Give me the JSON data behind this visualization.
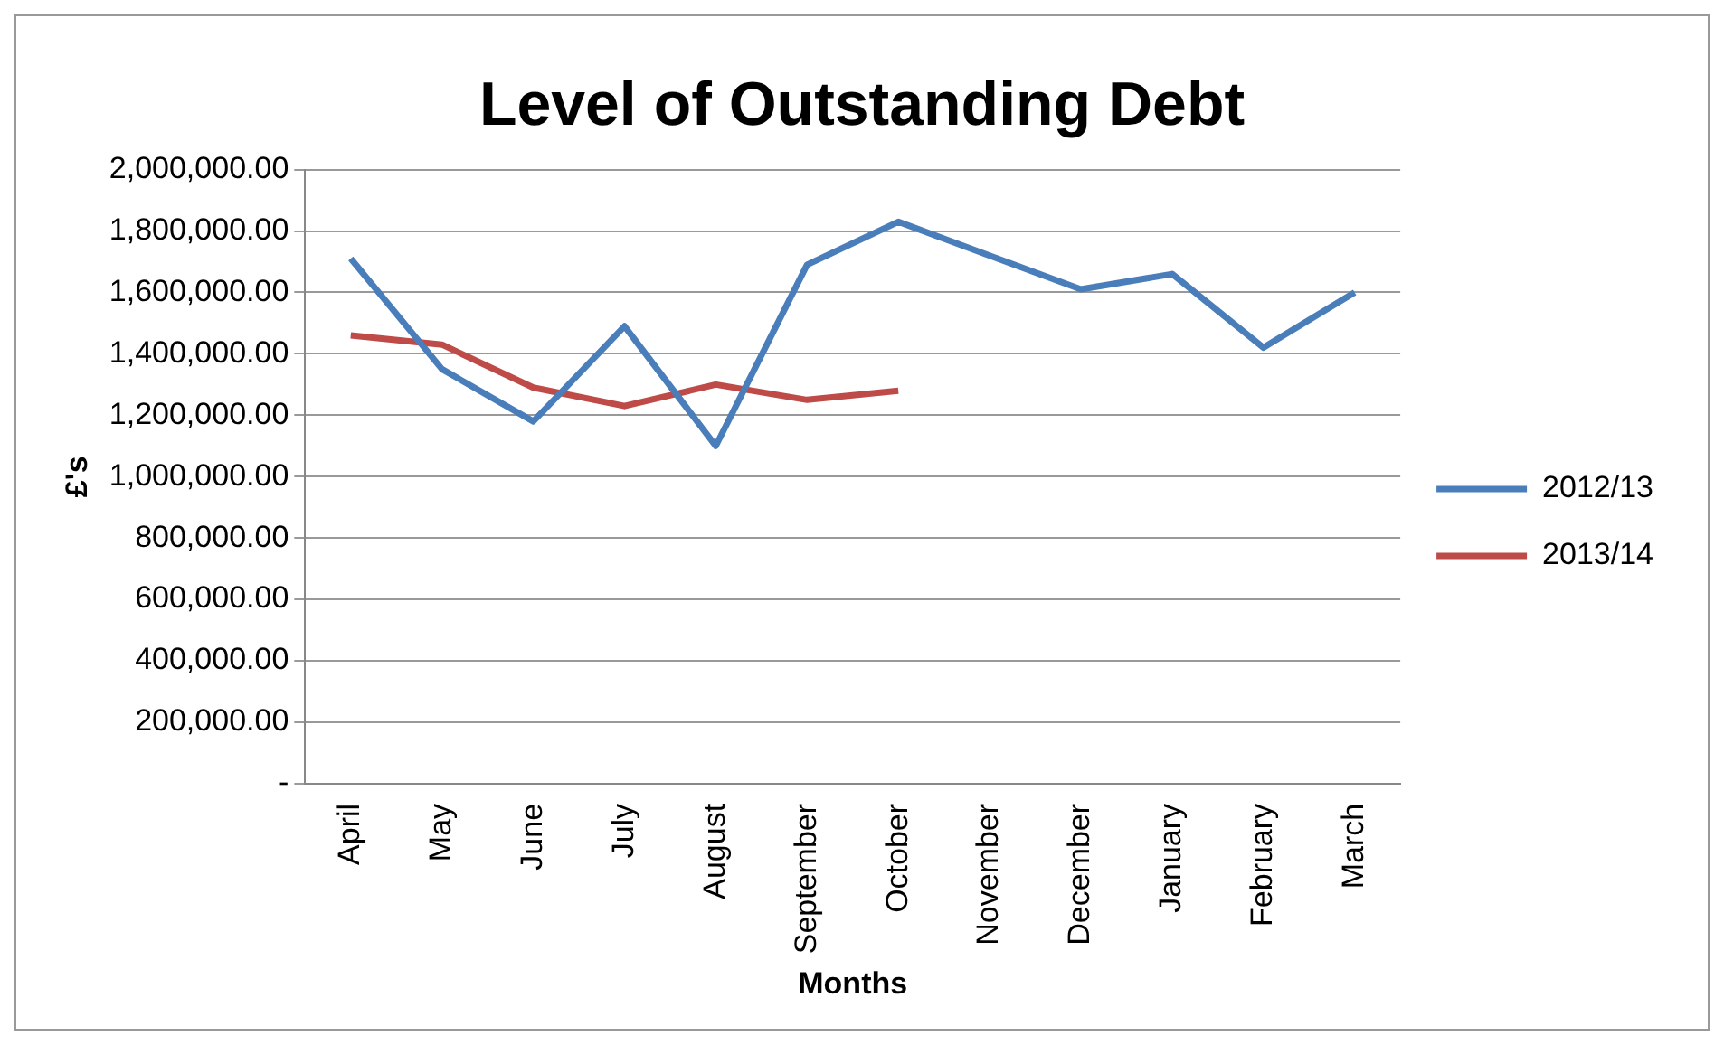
{
  "chart_data": {
    "type": "line",
    "title": "Level of Outstanding Debt",
    "xlabel": "Months",
    "ylabel": "£'s",
    "categories": [
      "April",
      "May",
      "June",
      "July",
      "August",
      "September",
      "October",
      "November",
      "December",
      "January",
      "February",
      "March"
    ],
    "series": [
      {
        "name": "2012/13",
        "color": "#4a7ebb",
        "values": [
          1710000,
          1350000,
          1180000,
          1490000,
          1100000,
          1690000,
          1830000,
          1720000,
          1610000,
          1660000,
          1420000,
          1600000
        ]
      },
      {
        "name": "2013/14",
        "color": "#be4b48",
        "values": [
          1460000,
          1430000,
          1290000,
          1230000,
          1300000,
          1250000,
          1280000,
          null,
          null,
          null,
          null,
          null
        ]
      }
    ],
    "ylim": [
      0,
      2000000
    ],
    "yticks": [
      {
        "value": 0,
        "label": "-"
      },
      {
        "value": 200000,
        "label": "200,000.00"
      },
      {
        "value": 400000,
        "label": "400,000.00"
      },
      {
        "value": 600000,
        "label": "600,000.00"
      },
      {
        "value": 800000,
        "label": "800,000.00"
      },
      {
        "value": 1000000,
        "label": "1,000,000.00"
      },
      {
        "value": 1200000,
        "label": "1,200,000.00"
      },
      {
        "value": 1400000,
        "label": "1,400,000.00"
      },
      {
        "value": 1600000,
        "label": "1,600,000.00"
      },
      {
        "value": 1800000,
        "label": "1,800,000.00"
      },
      {
        "value": 2000000,
        "label": "2,000,000.00"
      }
    ],
    "grid": "y",
    "legend": "right",
    "marker": "none",
    "line_style": "solid"
  }
}
